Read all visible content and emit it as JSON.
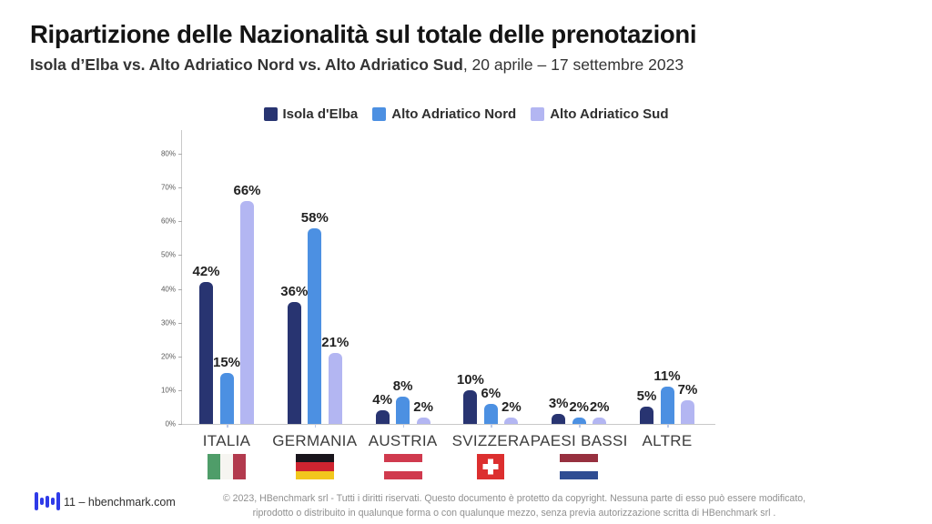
{
  "header": {
    "title": "Ripartizione delle Nazionalità sul totale delle prenotazioni",
    "subtitle_bold": "Isola d’Elba vs. Alto Adriatico Nord vs. Alto Adriatico Sud",
    "subtitle_rest": ", 20 aprile – 17 settembre 2023"
  },
  "chart_data": {
    "type": "bar",
    "title": "",
    "xlabel": "",
    "ylabel": "",
    "categories": [
      "ITALIA",
      "GERMANIA",
      "AUSTRIA",
      "SVIZZERA",
      "PAESI BASSI",
      "ALTRE"
    ],
    "series": [
      {
        "name": "Isola d'Elba",
        "color": "#283471",
        "values": [
          42,
          36,
          4,
          10,
          3,
          5
        ]
      },
      {
        "name": "Alto Adriatico Nord",
        "color": "#4c90e2",
        "values": [
          15,
          58,
          8,
          6,
          2,
          11
        ]
      },
      {
        "name": "Alto Adriatico Sud",
        "color": "#b3b6f2",
        "values": [
          66,
          21,
          2,
          2,
          2,
          7
        ]
      }
    ],
    "value_suffix": "%",
    "ylim": [
      0,
      80
    ],
    "yticks": [
      0,
      10,
      20,
      30,
      40,
      50,
      60,
      70,
      80
    ],
    "ytick_suffix": "%",
    "grid": false,
    "legend_position": "top",
    "flags": [
      {
        "category": "ITALIA",
        "name": "italy-flag",
        "type": "vertical",
        "colors": [
          "#4f9d69",
          "#f6f5f1",
          "#b23a4e"
        ]
      },
      {
        "category": "GERMANIA",
        "name": "germany-flag",
        "type": "horizontal",
        "colors": [
          "#19151c",
          "#ce2430",
          "#f2c71d"
        ]
      },
      {
        "category": "AUSTRIA",
        "name": "austria-flag",
        "type": "horizontal",
        "colors": [
          "#d03a4e",
          "#ffffff",
          "#d03a4e"
        ]
      },
      {
        "category": "SVIZZERA",
        "name": "switzerland-flag",
        "type": "swiss",
        "colors": [
          "#dc2f2f",
          "#ffffff"
        ]
      },
      {
        "category": "PAESI BASSI",
        "name": "netherlands-flag",
        "type": "horizontal",
        "colors": [
          "#97303f",
          "#ffffff",
          "#2f4d93"
        ]
      },
      {
        "category": "ALTRE",
        "name": "",
        "type": "none",
        "colors": []
      }
    ]
  },
  "footer": {
    "brand_text": "11 – hbenchmark.com",
    "copyright_line1": "© 2023, HBenchmark srl - Tutti i diritti riservati. Questo documento è protetto da copyright. Nessuna parte di esso può essere modificato,",
    "copyright_line2": "riprodotto o distribuito in qualunque forma o con qualunque mezzo, senza previa autorizzazione scritta di HBenchmark srl ."
  }
}
